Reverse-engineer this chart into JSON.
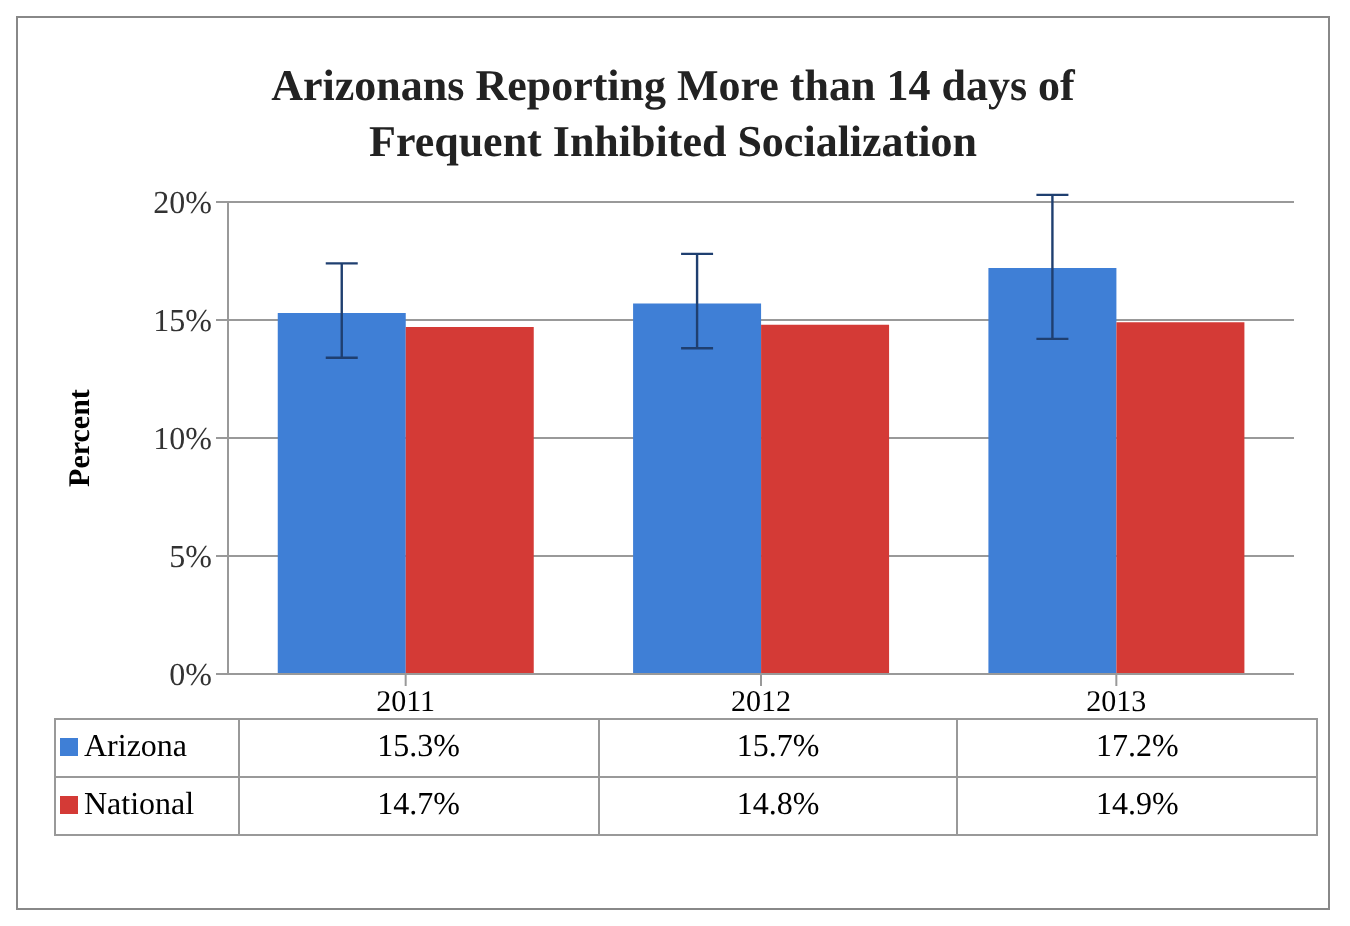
{
  "chart_data": {
    "type": "bar",
    "title": "Arizonans Reporting More than 14 days of Frequent Inhibited Socialization",
    "ylabel": "Percent",
    "categories": [
      "2011",
      "2012",
      "2013"
    ],
    "series": [
      {
        "name": "Arizona",
        "color": "#3f7fd6",
        "values": [
          15.3,
          15.7,
          17.2
        ],
        "value_labels": [
          "15.3%",
          "15.7%",
          "17.2%"
        ],
        "errors": [
          [
            13.4,
            17.4
          ],
          [
            13.8,
            17.8
          ],
          [
            14.2,
            20.3
          ]
        ]
      },
      {
        "name": "National",
        "color": "#d43a36",
        "values": [
          14.7,
          14.8,
          14.9
        ],
        "value_labels": [
          "14.7%",
          "14.8%",
          "14.9%"
        ]
      }
    ],
    "ylim": [
      0,
      20
    ],
    "yticks": [
      {
        "value": 0,
        "label": "0%"
      },
      {
        "value": 5,
        "label": "5%"
      },
      {
        "value": 10,
        "label": "10%"
      },
      {
        "value": 15,
        "label": "15%"
      },
      {
        "value": 20,
        "label": "20%"
      }
    ],
    "grid": "y",
    "legend": "bottom"
  }
}
